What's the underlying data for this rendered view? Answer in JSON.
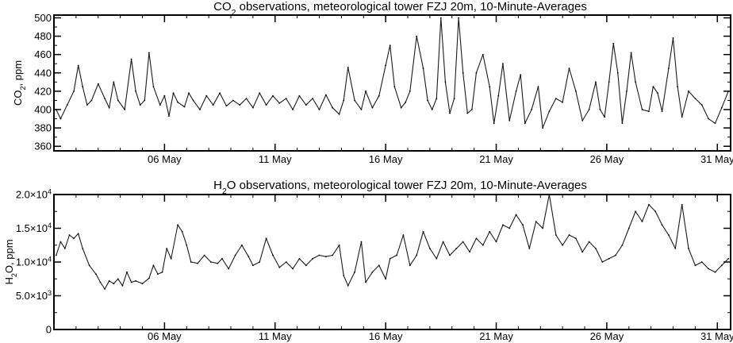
{
  "chart_data": [
    {
      "type": "line",
      "title": "CO₂ observations, meteorological tower FZJ 20m, 10-Minute-Averages",
      "title_parts": {
        "pre": "CO",
        "sub": "2",
        "post": " observations, meteorological tower FZJ 20m, 10-Minute-Averages"
      },
      "ylabel": "CO₂, ppm",
      "ylabel_parts": {
        "pre": "CO",
        "sub": "2",
        "post": ", ppm"
      },
      "xlim": [
        1,
        31.6
      ],
      "ylim": [
        355,
        503
      ],
      "x_ticks": [
        {
          "x": 6,
          "label": "06 May"
        },
        {
          "x": 11,
          "label": "11 May"
        },
        {
          "x": 16,
          "label": "16 May"
        },
        {
          "x": 21,
          "label": "21 May"
        },
        {
          "x": 26,
          "label": "26 May"
        },
        {
          "x": 31,
          "label": "31 May"
        }
      ],
      "y_ticks": [
        {
          "y": 360,
          "label": "360"
        },
        {
          "y": 380,
          "label": "380"
        },
        {
          "y": 400,
          "label": "400"
        },
        {
          "y": 420,
          "label": "420"
        },
        {
          "y": 440,
          "label": "440"
        },
        {
          "y": 460,
          "label": "460"
        },
        {
          "y": 480,
          "label": "480"
        },
        {
          "y": 500,
          "label": "500"
        }
      ],
      "series": [
        {
          "x": [
            1.1,
            1.3,
            1.6,
            1.9,
            2.1,
            2.3,
            2.5,
            2.7,
            3.0,
            3.3,
            3.5,
            3.7,
            3.9,
            4.2,
            4.5,
            4.7,
            4.9,
            5.1,
            5.3,
            5.5,
            5.8,
            6.0,
            6.2,
            6.4,
            6.6,
            6.9,
            7.1,
            7.3,
            7.6,
            7.9,
            8.2,
            8.5,
            8.8,
            9.1,
            9.4,
            9.7,
            10.0,
            10.3,
            10.6,
            10.9,
            11.2,
            11.5,
            11.8,
            12.1,
            12.4,
            12.7,
            13.0,
            13.3,
            13.6,
            13.9,
            14.1,
            14.3,
            14.6,
            14.9,
            15.1,
            15.4,
            15.7,
            16.0,
            16.2,
            16.4,
            16.7,
            16.9,
            17.1,
            17.4,
            17.7,
            17.9,
            18.1,
            18.3,
            18.5,
            18.7,
            18.9,
            19.1,
            19.3,
            19.5,
            19.7,
            19.9,
            20.1,
            20.4,
            20.7,
            20.9,
            21.1,
            21.3,
            21.6,
            21.9,
            22.1,
            22.3,
            22.6,
            22.9,
            23.1,
            23.4,
            23.7,
            24.0,
            24.3,
            24.6,
            24.9,
            25.2,
            25.5,
            25.7,
            25.9,
            26.1,
            26.3,
            26.5,
            26.7,
            26.9,
            27.1,
            27.3,
            27.6,
            27.9,
            28.1,
            28.3,
            28.5,
            28.8,
            29.0,
            29.2,
            29.4,
            29.7,
            30.0,
            30.3,
            30.6,
            30.9,
            31.2,
            31.5
          ],
          "y": [
            400,
            390,
            405,
            420,
            448,
            425,
            405,
            410,
            428,
            412,
            402,
            430,
            410,
            400,
            455,
            420,
            405,
            410,
            462,
            425,
            405,
            415,
            393,
            418,
            408,
            403,
            418,
            410,
            400,
            415,
            405,
            418,
            404,
            410,
            405,
            412,
            402,
            418,
            405,
            415,
            407,
            412,
            400,
            415,
            405,
            412,
            400,
            416,
            402,
            395,
            410,
            446,
            410,
            400,
            420,
            402,
            415,
            448,
            470,
            425,
            402,
            408,
            420,
            480,
            445,
            410,
            400,
            412,
            500,
            430,
            396,
            412,
            500,
            440,
            396,
            400,
            440,
            460,
            425,
            385,
            415,
            450,
            388,
            420,
            438,
            385,
            400,
            425,
            380,
            398,
            412,
            408,
            445,
            420,
            388,
            400,
            430,
            400,
            392,
            430,
            472,
            440,
            385,
            420,
            462,
            430,
            400,
            398,
            425,
            418,
            398,
            445,
            478,
            425,
            392,
            420,
            412,
            405,
            390,
            385,
            402,
            420
          ]
        }
      ]
    },
    {
      "type": "line",
      "title": "H₂O observations, meteorological tower FZJ 20m, 10-Minute-Averages",
      "title_parts": {
        "pre": "H",
        "sub": "2",
        "post": "O observations, meteorological tower FZJ 20m, 10-Minute-Averages"
      },
      "ylabel": "H₂O, ppm",
      "ylabel_parts": {
        "pre": "H",
        "sub": "2",
        "post": "O, ppm"
      },
      "xlim": [
        1,
        31.6
      ],
      "ylim": [
        0,
        20000
      ],
      "x_ticks": [
        {
          "x": 6,
          "label": "06 May"
        },
        {
          "x": 11,
          "label": "11 May"
        },
        {
          "x": 16,
          "label": "16 May"
        },
        {
          "x": 21,
          "label": "21 May"
        },
        {
          "x": 26,
          "label": "26 May"
        },
        {
          "x": 31,
          "label": "31 May"
        }
      ],
      "y_ticks": [
        {
          "y": 0,
          "label": "0"
        },
        {
          "y": 5000,
          "label": "5.0×10³",
          "mant": "5.0×10",
          "exp": "3"
        },
        {
          "y": 10000,
          "label": "1.0×10⁴",
          "mant": "1.0×10",
          "exp": "4"
        },
        {
          "y": 15000,
          "label": "1.5×10⁴",
          "mant": "1.5×10",
          "exp": "4"
        },
        {
          "y": 20000,
          "label": "2.0×10⁴",
          "mant": "2.0×10",
          "exp": "4"
        }
      ],
      "series": [
        {
          "x": [
            1.1,
            1.3,
            1.5,
            1.7,
            1.9,
            2.1,
            2.3,
            2.6,
            2.9,
            3.1,
            3.3,
            3.5,
            3.7,
            3.9,
            4.1,
            4.3,
            4.5,
            4.7,
            5.0,
            5.3,
            5.5,
            5.7,
            5.9,
            6.1,
            6.3,
            6.6,
            6.8,
            7.0,
            7.2,
            7.5,
            7.8,
            8.1,
            8.4,
            8.6,
            8.9,
            9.2,
            9.5,
            9.8,
            10.0,
            10.3,
            10.6,
            10.9,
            11.2,
            11.5,
            11.8,
            12.1,
            12.4,
            12.7,
            13.0,
            13.3,
            13.6,
            13.9,
            14.1,
            14.3,
            14.6,
            14.9,
            15.1,
            15.4,
            15.7,
            16.0,
            16.2,
            16.5,
            16.8,
            17.1,
            17.4,
            17.7,
            18.0,
            18.3,
            18.6,
            18.9,
            19.2,
            19.5,
            19.8,
            20.1,
            20.4,
            20.7,
            21.0,
            21.3,
            21.6,
            21.9,
            22.2,
            22.5,
            22.8,
            23.1,
            23.4,
            23.7,
            24.0,
            24.3,
            24.6,
            24.9,
            25.2,
            25.5,
            25.8,
            26.1,
            26.4,
            26.7,
            27.0,
            27.3,
            27.6,
            27.9,
            28.2,
            28.5,
            28.8,
            29.1,
            29.4,
            29.7,
            30.0,
            30.3,
            30.6,
            30.9,
            31.2,
            31.5
          ],
          "y": [
            11000,
            13000,
            12000,
            14000,
            13500,
            14200,
            12000,
            9500,
            8200,
            7000,
            6000,
            7200,
            6800,
            7500,
            6500,
            8500,
            7000,
            7200,
            6800,
            7600,
            9500,
            8200,
            8500,
            12000,
            10500,
            15500,
            14500,
            12500,
            10000,
            9800,
            11000,
            10000,
            9800,
            10500,
            9000,
            11000,
            12500,
            10800,
            9500,
            10000,
            13500,
            11000,
            9200,
            10000,
            9000,
            10500,
            9500,
            10500,
            11000,
            10800,
            11000,
            12500,
            8000,
            6500,
            8500,
            13000,
            7000,
            8500,
            9500,
            7500,
            10500,
            11000,
            14000,
            9500,
            11000,
            14500,
            12000,
            10500,
            13000,
            11000,
            12000,
            13000,
            11500,
            13500,
            12500,
            14500,
            13000,
            15500,
            15000,
            17000,
            15500,
            12000,
            16000,
            15000,
            20000,
            14000,
            12500,
            14000,
            13500,
            11500,
            13000,
            12000,
            10000,
            10500,
            11000,
            12500,
            15000,
            17500,
            16000,
            18500,
            17500,
            15500,
            14000,
            12000,
            18500,
            12000,
            9500,
            10000,
            9000,
            8500,
            9500,
            10500
          ]
        }
      ]
    }
  ]
}
